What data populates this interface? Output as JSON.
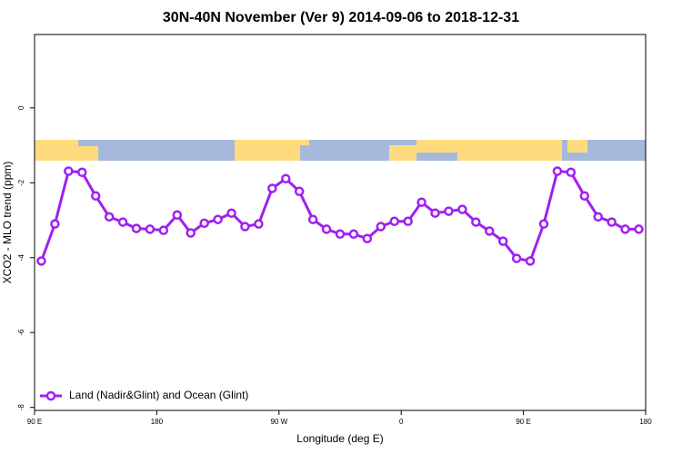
{
  "chart_data": {
    "type": "line",
    "title": "30N-40N November (Ver 9)   2014-09-06 to 2018-12-31",
    "x_label": "Longitude (deg E)",
    "y_label": "XCO2 - MLO trend (ppm)",
    "x": [
      95,
      105,
      115,
      125,
      135,
      145,
      155,
      165,
      175,
      185,
      195,
      205,
      215,
      225,
      235,
      245,
      255,
      265,
      275,
      285,
      295,
      305,
      315,
      325,
      335,
      345,
      355,
      365,
      375,
      385,
      395,
      405,
      415,
      425,
      435,
      445,
      455,
      465,
      475,
      485,
      495,
      505,
      515,
      525,
      535
    ],
    "series": [
      {
        "name": "Land (Nadir&Glint) and Ocean (Glint)",
        "color": "#a020f0",
        "values": [
          -4.09,
          -3.1,
          -1.69,
          -1.72,
          -2.35,
          -2.91,
          -3.05,
          -3.22,
          -3.24,
          -3.27,
          -2.86,
          -3.34,
          -3.08,
          -2.98,
          -2.81,
          -3.17,
          -3.1,
          -2.15,
          -1.89,
          -2.23,
          -2.98,
          -3.24,
          -3.37,
          -3.37,
          -3.49,
          -3.17,
          -3.03,
          -3.03,
          -2.52,
          -2.81,
          -2.76,
          -2.71,
          -3.05,
          -3.29,
          -3.56,
          -4.02,
          -4.09,
          -3.1,
          -1.69,
          -1.72,
          -2.35,
          -2.91,
          -3.05,
          -3.24,
          -3.24
        ]
      }
    ],
    "xlim": [
      90,
      540
    ],
    "xticks": [
      {
        "value": 90,
        "label": "90 E"
      },
      {
        "value": 180,
        "label": "180"
      },
      {
        "value": 270,
        "label": "90 W"
      },
      {
        "value": 360,
        "label": "0"
      },
      {
        "value": 450,
        "label": "90 E"
      },
      {
        "value": 540,
        "label": "180"
      }
    ],
    "ylim": [
      -8.08,
      1.96
    ],
    "yticks": [
      0,
      -2,
      -4,
      -6,
      -8
    ],
    "legend": "bottomleft"
  }
}
